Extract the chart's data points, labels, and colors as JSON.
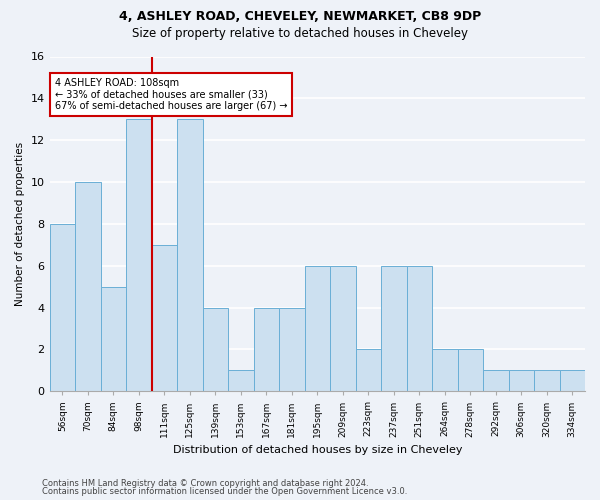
{
  "title1": "4, ASHLEY ROAD, CHEVELEY, NEWMARKET, CB8 9DP",
  "title2": "Size of property relative to detached houses in Cheveley",
  "xlabel": "Distribution of detached houses by size in Cheveley",
  "ylabel": "Number of detached properties",
  "categories": [
    "56sqm",
    "70sqm",
    "84sqm",
    "98sqm",
    "111sqm",
    "125sqm",
    "139sqm",
    "153sqm",
    "167sqm",
    "181sqm",
    "195sqm",
    "209sqm",
    "223sqm",
    "237sqm",
    "251sqm",
    "264sqm",
    "278sqm",
    "292sqm",
    "306sqm",
    "320sqm",
    "334sqm"
  ],
  "values": [
    8,
    10,
    5,
    13,
    7,
    13,
    4,
    1,
    4,
    4,
    6,
    6,
    2,
    6,
    6,
    2,
    2,
    1,
    1,
    1,
    1
  ],
  "bar_color": "#cce0f0",
  "bar_edge_color": "#6aafd6",
  "highlight_line_index": 4,
  "annotation_text": "4 ASHLEY ROAD: 108sqm\n← 33% of detached houses are smaller (33)\n67% of semi-detached houses are larger (67) →",
  "annotation_box_color": "white",
  "annotation_box_edge": "#cc0000",
  "vline_color": "#cc0000",
  "ylim": [
    0,
    16
  ],
  "yticks": [
    0,
    2,
    4,
    6,
    8,
    10,
    12,
    14,
    16
  ],
  "footer1": "Contains HM Land Registry data © Crown copyright and database right 2024.",
  "footer2": "Contains public sector information licensed under the Open Government Licence v3.0.",
  "background_color": "#eef2f8",
  "grid_color": "#ffffff",
  "title1_fontsize": 9,
  "title2_fontsize": 8.5
}
